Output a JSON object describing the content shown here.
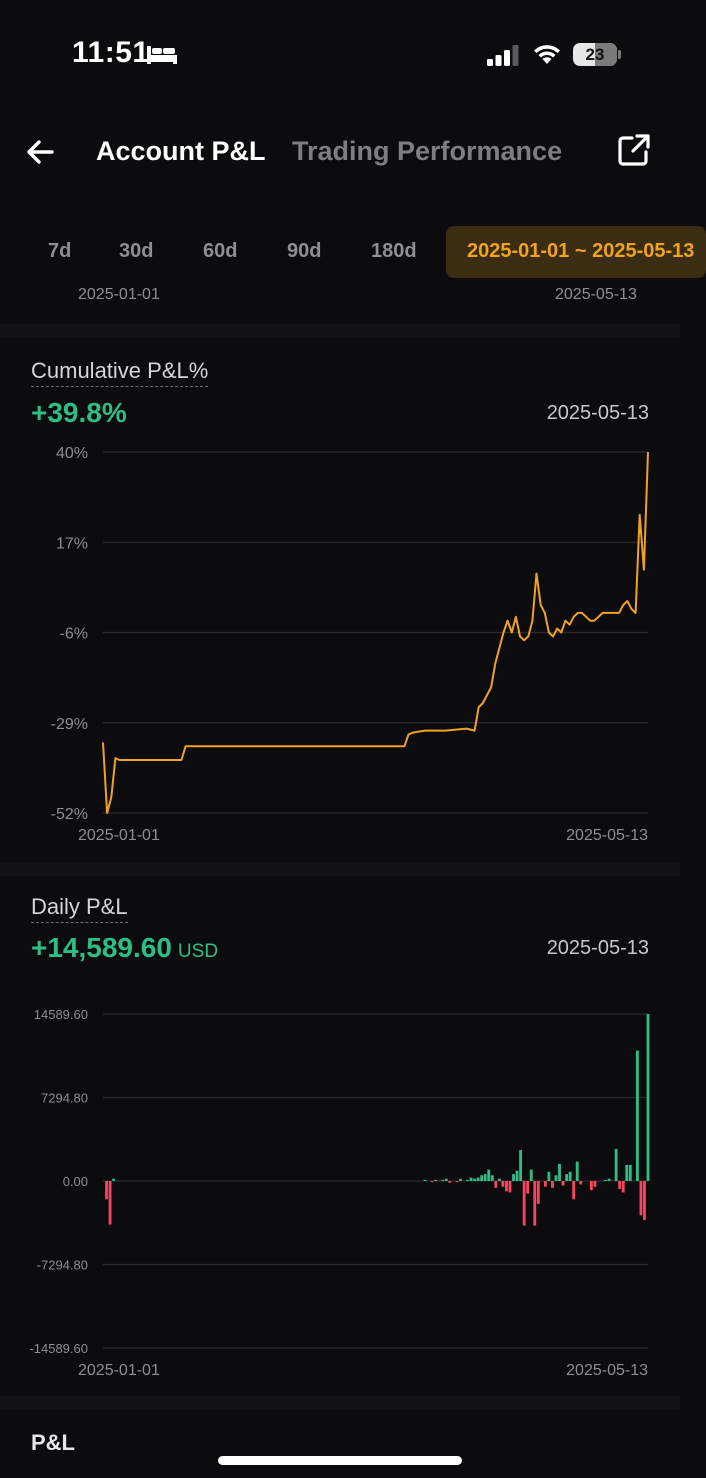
{
  "status": {
    "time": "11:51",
    "battery": "23"
  },
  "nav": {
    "tabs": [
      {
        "label": "Account P&L"
      },
      {
        "label": "Trading Performance"
      }
    ]
  },
  "ranges": [
    "7d",
    "30d",
    "60d",
    "90d",
    "180d"
  ],
  "custom_range": "2025-01-01 ~ 2025-05-13",
  "cumulative": {
    "title": "Cumulative P&L%",
    "value": "+39.8%",
    "date": "2025-05-13",
    "start_label": "2025-01-01",
    "end_label": "2025-05-13",
    "y_ticks": [
      "40%",
      "17%",
      "-6%",
      "-29%",
      "-52%"
    ]
  },
  "daily": {
    "title": "Daily P&L",
    "value": "+14,589.60",
    "unit": "USD",
    "date": "2025-05-13",
    "start_label": "2025-01-01",
    "end_label": "2025-05-13",
    "y_ticks": [
      "14589.60",
      "7294.80",
      "0.00",
      "-7294.80",
      "-14589.60"
    ]
  },
  "pnl_section": {
    "title": "P&L"
  },
  "colors": {
    "line": "#f0a322",
    "positive": "#2ebd85",
    "negative": "#f6465d",
    "accent_bg": "#3b2d12"
  },
  "chart_data": [
    {
      "type": "line",
      "title": "Cumulative P&L%",
      "ylim": [
        -52,
        40
      ],
      "x_range": [
        "2025-01-01",
        "2025-05-13"
      ],
      "series": [
        {
          "x": [
            "2025-01-01",
            "2025-01-02",
            "2025-01-03",
            "2025-01-04",
            "2025-01-05",
            "2025-01-06",
            "2025-01-20",
            "2025-01-21",
            "2025-01-22",
            "2025-02-10",
            "2025-03-15",
            "2025-03-16",
            "2025-03-17",
            "2025-03-20",
            "2025-03-25",
            "2025-03-30",
            "2025-04-01",
            "2025-04-02",
            "2025-04-03",
            "2025-04-05",
            "2025-04-06",
            "2025-04-08",
            "2025-04-09",
            "2025-04-10",
            "2025-04-11",
            "2025-04-12",
            "2025-04-13",
            "2025-04-14",
            "2025-04-15",
            "2025-04-16",
            "2025-04-17",
            "2025-04-18",
            "2025-04-19",
            "2025-04-20",
            "2025-04-21",
            "2025-04-22",
            "2025-04-23",
            "2025-04-24",
            "2025-04-25",
            "2025-04-26",
            "2025-04-27",
            "2025-04-28",
            "2025-04-29",
            "2025-04-30",
            "2025-05-01",
            "2025-05-02",
            "2025-05-04",
            "2025-05-05",
            "2025-05-06",
            "2025-05-07",
            "2025-05-08",
            "2025-05-09",
            "2025-05-10",
            "2025-05-11",
            "2025-05-12",
            "2025-05-13"
          ],
          "values": [
            -34,
            -52,
            -48,
            -38,
            -38.5,
            -38.5,
            -38.5,
            -35,
            -35,
            -35,
            -35,
            -32,
            -31.5,
            -31,
            -31,
            -30.5,
            -31,
            -25,
            -24,
            -20,
            -14,
            -6,
            -3,
            -6,
            -2,
            -7,
            -8,
            -7,
            -3,
            9,
            1,
            -1,
            -6,
            -7,
            -5,
            -6,
            -3,
            -4,
            -2,
            -1,
            -1,
            -2,
            -3,
            -3,
            -2,
            -1,
            -1,
            -1,
            -1,
            1,
            2,
            0,
            -1,
            24,
            10,
            40
          ]
        }
      ]
    },
    {
      "type": "bar",
      "title": "Daily P&L",
      "ylim": [
        -14589.6,
        14589.6
      ],
      "x_range": [
        "2025-01-01",
        "2025-05-13"
      ],
      "values": [
        0,
        -1600,
        -3800,
        200,
        0,
        0,
        0,
        0,
        0,
        0,
        0,
        0,
        0,
        0,
        0,
        0,
        0,
        0,
        0,
        0,
        0,
        0,
        0,
        0,
        0,
        0,
        0,
        0,
        0,
        0,
        0,
        0,
        0,
        0,
        0,
        0,
        0,
        0,
        0,
        0,
        0,
        0,
        0,
        0,
        0,
        0,
        0,
        0,
        0,
        0,
        0,
        0,
        0,
        0,
        0,
        0,
        0,
        0,
        0,
        0,
        0,
        0,
        0,
        0,
        0,
        0,
        0,
        0,
        0,
        0,
        0,
        0,
        0,
        0,
        0,
        0,
        0,
        0,
        0,
        0,
        0,
        0,
        0,
        0,
        0,
        0,
        0,
        0,
        0,
        0,
        0,
        100,
        0,
        -100,
        100,
        0,
        100,
        200,
        -150,
        0,
        -100,
        200,
        0,
        100,
        300,
        200,
        300,
        500,
        600,
        1000,
        500,
        -600,
        200,
        -500,
        -900,
        -1000,
        600,
        900,
        2700,
        -3900,
        -1100,
        1000,
        -3900,
        -2000,
        0,
        -500,
        800,
        -600,
        500,
        1500,
        -400,
        600,
        800,
        -1600,
        1700,
        -300,
        0,
        0,
        -800,
        -500,
        0,
        0,
        100,
        200,
        0,
        2800,
        -700,
        -1000,
        1400,
        1400,
        0,
        11400,
        -3000,
        -3400,
        14589.6
      ]
    }
  ]
}
